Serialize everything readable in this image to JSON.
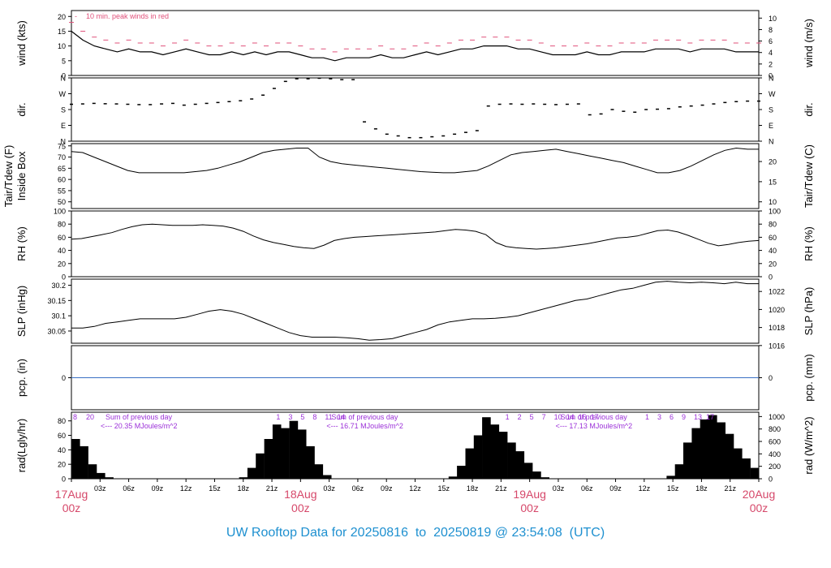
{
  "footer": {
    "prefix": "UW Rooftop Data for",
    "start": "20250816",
    "sep": "to",
    "end": "20250819",
    "at": "@",
    "time": "23:54:08",
    "tz": "(UTC)"
  },
  "colors": {
    "axis": "#000000",
    "peak": "#e0507a",
    "date_label": "#d6486a",
    "annotation": "#9b30d8",
    "precip": "#3a6fc4",
    "footer": "#1e90d0"
  },
  "x_axis": {
    "hour_ticks": [
      "03z",
      "06z",
      "09z",
      "12z",
      "15z",
      "18z",
      "21z",
      "03z",
      "06z",
      "09z",
      "12z",
      "15z",
      "18z",
      "21z",
      "03z",
      "06z",
      "09z",
      "12z",
      "15z",
      "18z",
      "21z"
    ],
    "date_labels": [
      {
        "date": "17Aug",
        "time": "00z"
      },
      {
        "date": "18Aug",
        "time": "00z"
      },
      {
        "date": "19Aug",
        "time": "00z"
      },
      {
        "date": "20Aug",
        "time": "00z"
      }
    ]
  },
  "chart_data": [
    {
      "type": "line",
      "ylabel": "wind (kts)",
      "ylabel_right": "wind (m/s)",
      "left_ticks": [
        0,
        5,
        10,
        15,
        20
      ],
      "right_ticks": [
        0,
        2,
        4,
        6,
        8,
        10
      ],
      "ylim": [
        0,
        22
      ],
      "legend_note": "10 min. peak winds in red",
      "legend_glyph": "-",
      "series": [
        {
          "values": [
            15,
            12,
            10,
            9,
            8,
            9,
            8,
            8,
            7,
            8,
            9,
            8,
            7,
            7,
            8,
            7,
            8,
            7,
            8,
            8,
            7,
            6,
            6,
            5,
            6,
            6,
            6,
            7,
            6,
            6,
            7,
            8,
            7,
            8,
            9,
            9,
            10,
            10,
            10,
            9,
            9,
            8,
            7,
            7,
            7,
            8,
            7,
            7,
            8,
            8,
            8,
            9,
            9,
            9,
            8,
            9,
            9,
            9,
            8,
            8,
            8
          ]
        },
        {
          "values": [
            18,
            15,
            13,
            12,
            11,
            12,
            11,
            11,
            10,
            11,
            12,
            11,
            10,
            10,
            11,
            10,
            11,
            10,
            11,
            11,
            10,
            9,
            9,
            8,
            9,
            9,
            9,
            10,
            9,
            9,
            10,
            11,
            10,
            11,
            12,
            12,
            13,
            13,
            13,
            12,
            12,
            11,
            10,
            10,
            10,
            11,
            10,
            10,
            11,
            11,
            11,
            12,
            12,
            12,
            11,
            12,
            12,
            12,
            11,
            11,
            11
          ]
        }
      ]
    },
    {
      "type": "scatter",
      "ylabel": "dir.",
      "ylabel_right": "dir.",
      "left_ticks": [
        "N",
        "E",
        "S",
        "W",
        "N"
      ],
      "right_ticks": [
        "N",
        "E",
        "S",
        "W",
        "N"
      ],
      "ylim": [
        0,
        360
      ],
      "series": [
        {
          "values": [
            210,
            212,
            215,
            213,
            212,
            210,
            208,
            208,
            212,
            215,
            205,
            210,
            215,
            220,
            225,
            230,
            240,
            262,
            300,
            340,
            355,
            355,
            358,
            355,
            350,
            350,
            110,
            70,
            40,
            30,
            20,
            20,
            25,
            30,
            40,
            50,
            60,
            200,
            210,
            212,
            210,
            212,
            210,
            208,
            210,
            212,
            150,
            155,
            180,
            170,
            165,
            180,
            182,
            185,
            195,
            200,
            205,
            212,
            220,
            225,
            228,
            228
          ]
        }
      ]
    },
    {
      "type": "line",
      "ylabel": "Tair/Tdew (F) Inside Box",
      "ylabel_right": "Tair/Tdew (C)",
      "left_ticks": [
        50,
        55,
        60,
        65,
        70,
        75
      ],
      "right_ticks": [
        10,
        15,
        20
      ],
      "ylim": [
        47,
        76
      ],
      "series": [
        {
          "values": [
            72.5,
            72,
            70,
            68,
            66,
            64,
            63,
            63,
            63,
            63,
            63,
            63.5,
            64,
            65,
            66.5,
            68,
            70,
            72,
            73,
            73.5,
            74,
            74,
            70,
            68,
            67,
            66.5,
            66,
            65.5,
            65,
            64.5,
            64,
            63.5,
            63.2,
            63,
            63,
            63.5,
            64,
            66,
            68.5,
            71,
            72,
            72.5,
            73,
            73.5,
            72.5,
            71.5,
            70.5,
            69.5,
            68.5,
            67.5,
            66,
            64.5,
            63,
            63,
            64,
            66,
            68.5,
            71,
            73,
            74,
            73.5,
            73.5
          ]
        }
      ]
    },
    {
      "type": "line",
      "ylabel": "RH (%)",
      "ylabel_right": "RH (%)",
      "left_ticks": [
        0,
        20,
        40,
        60,
        80,
        100
      ],
      "right_ticks": [
        0,
        20,
        40,
        60,
        80,
        100
      ],
      "ylim": [
        0,
        100
      ],
      "series": [
        {
          "values": [
            57,
            58,
            61,
            64,
            67,
            72,
            76,
            79,
            80,
            79,
            78,
            78,
            78,
            79,
            78,
            77,
            74,
            69,
            62,
            56,
            52,
            49,
            46,
            44,
            43,
            48,
            55,
            58,
            60,
            61,
            62,
            63,
            64,
            65,
            66,
            67,
            68,
            70,
            72,
            71,
            69,
            64,
            52,
            46,
            44,
            43,
            42,
            43,
            44,
            46,
            48,
            50,
            53,
            56,
            59,
            60,
            62,
            66,
            70,
            71,
            68,
            63,
            57,
            51,
            47,
            49,
            52,
            54,
            55
          ]
        }
      ]
    },
    {
      "type": "line",
      "ylabel": "SLP (inHg)",
      "ylabel_right": "SLP (hPa)",
      "left_ticks": [
        30.05,
        30.1,
        30.15,
        30.2
      ],
      "right_ticks": [
        1016,
        1018,
        1020,
        1022
      ],
      "ylim": [
        30.01,
        30.22
      ],
      "series": [
        {
          "values": [
            30.06,
            30.06,
            30.065,
            30.075,
            30.08,
            30.085,
            30.09,
            30.09,
            30.09,
            30.09,
            30.095,
            30.105,
            30.115,
            30.12,
            30.115,
            30.105,
            30.09,
            30.075,
            30.06,
            30.045,
            30.035,
            30.03,
            30.03,
            30.03,
            30.028,
            30.025,
            30.02,
            30.022,
            30.025,
            30.035,
            30.045,
            30.055,
            30.07,
            30.08,
            30.085,
            30.09,
            30.09,
            30.092,
            30.095,
            30.1,
            30.11,
            30.12,
            30.13,
            30.14,
            30.15,
            30.155,
            30.165,
            30.175,
            30.185,
            30.19,
            30.2,
            30.21,
            30.213,
            30.21,
            30.208,
            30.21,
            30.208,
            30.205,
            30.21,
            30.205,
            30.205
          ]
        }
      ]
    },
    {
      "type": "line",
      "ylabel": "pcp. (in)",
      "ylabel_right": "pcp. (mm)",
      "left_ticks": [
        0
      ],
      "right_ticks": [
        0
      ],
      "series": [
        {
          "values": [
            0,
            0
          ]
        }
      ]
    },
    {
      "type": "bar",
      "ylabel": "rad(Lgly/hr)",
      "ylabel_right": "rad (W/m^2)",
      "left_ticks": [
        0,
        20,
        40,
        60,
        80
      ],
      "right_ticks": [
        0,
        200,
        400,
        600,
        800,
        1000
      ],
      "ylim": [
        0,
        92
      ],
      "series": [
        {
          "values": [
            55,
            45,
            20,
            8,
            2,
            0,
            0,
            0,
            0,
            0,
            0,
            0,
            0,
            0,
            0,
            0,
            0,
            0,
            0,
            0,
            2,
            15,
            35,
            55,
            75,
            70,
            80,
            68,
            45,
            20,
            5,
            0,
            0,
            0,
            0,
            0,
            0,
            0,
            0,
            0,
            0,
            0,
            0,
            0,
            0,
            3,
            18,
            42,
            60,
            85,
            75,
            65,
            50,
            38,
            22,
            10,
            2,
            0,
            0,
            0,
            0,
            0,
            0,
            0,
            0,
            0,
            0,
            0,
            0,
            0,
            0,
            4,
            20,
            50,
            70,
            82,
            88,
            78,
            62,
            42,
            28,
            15
          ]
        }
      ],
      "daily": [
        {
          "hours": [
            "8",
            "20"
          ],
          "title": "Sum of previous day",
          "total": "<--- 20.35 MJoules/m^2"
        },
        {
          "hours": [
            "1",
            "3",
            "5",
            "8",
            "11",
            "14"
          ],
          "title": "Sum of previous day",
          "total": "<--- 16.71 MJoules/m^2"
        },
        {
          "hours": [
            "1",
            "2",
            "5",
            "7",
            "10",
            "14",
            "16",
            "17"
          ],
          "title": "Sum of previous day",
          "total": "<--- 17.13 MJoules/m^2"
        },
        {
          "hours": [
            "1",
            "3",
            "6",
            "9",
            "13",
            "17"
          ]
        }
      ]
    }
  ]
}
